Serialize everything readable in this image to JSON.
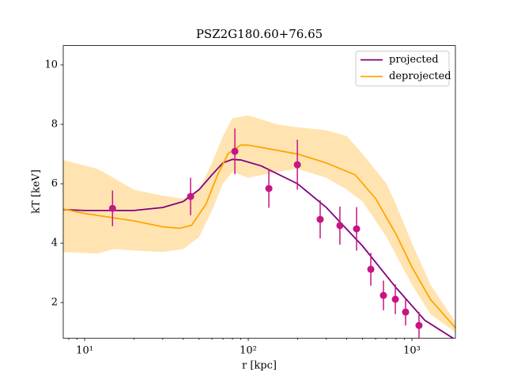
{
  "chart_data": {
    "type": "line",
    "title": "PSZ2G180.60+76.65",
    "x_label": "r [kpc]",
    "y_label": "kT [keV]",
    "xscale": "log",
    "xlim": [
      7.4,
      1844
    ],
    "ylim": [
      0.8,
      10.65
    ],
    "xticks": [
      {
        "value": 10,
        "label": "10¹"
      },
      {
        "value": 100,
        "label": "10²"
      },
      {
        "value": 1000,
        "label": "10³"
      }
    ],
    "yticks": [
      2,
      4,
      6,
      8,
      10
    ],
    "legend": "upper right",
    "band": {
      "color": "#ffa500",
      "x": [
        7.4,
        12,
        15,
        20,
        30,
        40,
        50,
        60,
        70,
        80,
        100,
        150,
        200,
        300,
        400,
        500,
        700,
        800,
        1000,
        1300,
        1844
      ],
      "lower": [
        3.7,
        3.65,
        3.8,
        3.75,
        3.7,
        3.8,
        4.2,
        5.1,
        6.0,
        6.4,
        6.2,
        6.4,
        6.5,
        6.2,
        5.8,
        5.4,
        4.2,
        3.6,
        2.6,
        1.6,
        1.0
      ],
      "upper": [
        6.8,
        6.5,
        6.2,
        5.8,
        5.6,
        5.5,
        5.8,
        6.7,
        7.6,
        8.2,
        8.3,
        8.0,
        7.9,
        7.8,
        7.6,
        7.0,
        6.0,
        5.3,
        4.0,
        2.6,
        1.35
      ]
    },
    "series": [
      {
        "name": "projected",
        "color": "#800080",
        "x": [
          7.4,
          10,
          20,
          30,
          40,
          50,
          60,
          70,
          80,
          90,
          120,
          200,
          300,
          500,
          800,
          1200,
          1844
        ],
        "values": [
          5.13,
          5.1,
          5.1,
          5.2,
          5.4,
          5.8,
          6.3,
          6.7,
          6.82,
          6.8,
          6.6,
          6.0,
          5.2,
          3.9,
          2.5,
          1.4,
          0.75
        ]
      },
      {
        "name": "deprojected",
        "color": "#ffa500",
        "x": [
          7.4,
          10,
          20,
          30,
          38,
          45,
          55,
          65,
          75,
          90,
          100,
          200,
          300,
          450,
          600,
          800,
          1000,
          1300,
          1844
        ],
        "values": [
          5.15,
          5.0,
          4.75,
          4.55,
          4.5,
          4.6,
          5.3,
          6.3,
          7.0,
          7.3,
          7.3,
          7.0,
          6.7,
          6.3,
          5.5,
          4.3,
          3.2,
          2.1,
          1.15
        ]
      }
    ],
    "points": {
      "color": "#c71585",
      "x": [
        14.8,
        44.4,
        82.8,
        133.6,
        199.5,
        275,
        363,
        459,
        561,
        670,
        792,
        915,
        1105
      ],
      "values": [
        5.17,
        5.57,
        7.09,
        5.84,
        6.64,
        4.8,
        4.59,
        4.48,
        3.12,
        2.24,
        2.11,
        1.68,
        1.23
      ],
      "errors": [
        0.6,
        0.63,
        0.77,
        0.65,
        0.84,
        0.64,
        0.64,
        0.73,
        0.55,
        0.5,
        0.5,
        0.45,
        0.45
      ]
    }
  }
}
